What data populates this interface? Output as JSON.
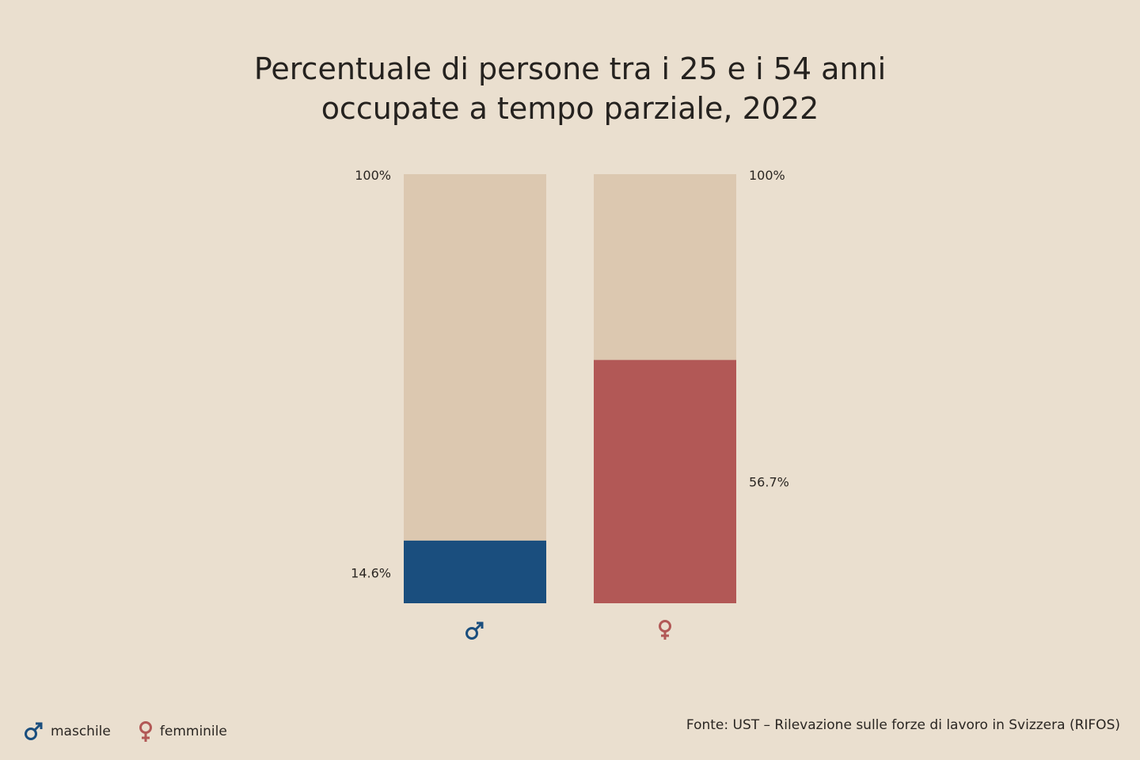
{
  "title": {
    "line1": "Percentuale di persone tra i 25 e i 54 anni",
    "line2": "occupate a tempo parziale, 2022"
  },
  "chart_data": {
    "type": "bar",
    "stacked_to": 100,
    "categories": [
      "maschile",
      "femminile"
    ],
    "category_icons": [
      "male-symbol-icon",
      "female-symbol-icon"
    ],
    "values": [
      14.6,
      56.7
    ],
    "value_labels": [
      "14.6%",
      "56.7%"
    ],
    "total_labels": [
      "100%",
      "100%"
    ],
    "ylim": [
      0,
      100
    ],
    "grid": false,
    "colors": {
      "maschile": "#1a4e7e",
      "femminile": "#b25856",
      "remainder": "#dcc8b0"
    }
  },
  "legend": {
    "items": [
      {
        "label": "maschile",
        "icon": "male-symbol-icon",
        "color": "#1a4e7e"
      },
      {
        "label": "femminile",
        "icon": "female-symbol-icon",
        "color": "#b25856"
      }
    ],
    "placement": "bottom-left"
  },
  "source": "Fonte: UST – Rilevazione sulle forze di lavoro in Svizzera (RIFOS)"
}
